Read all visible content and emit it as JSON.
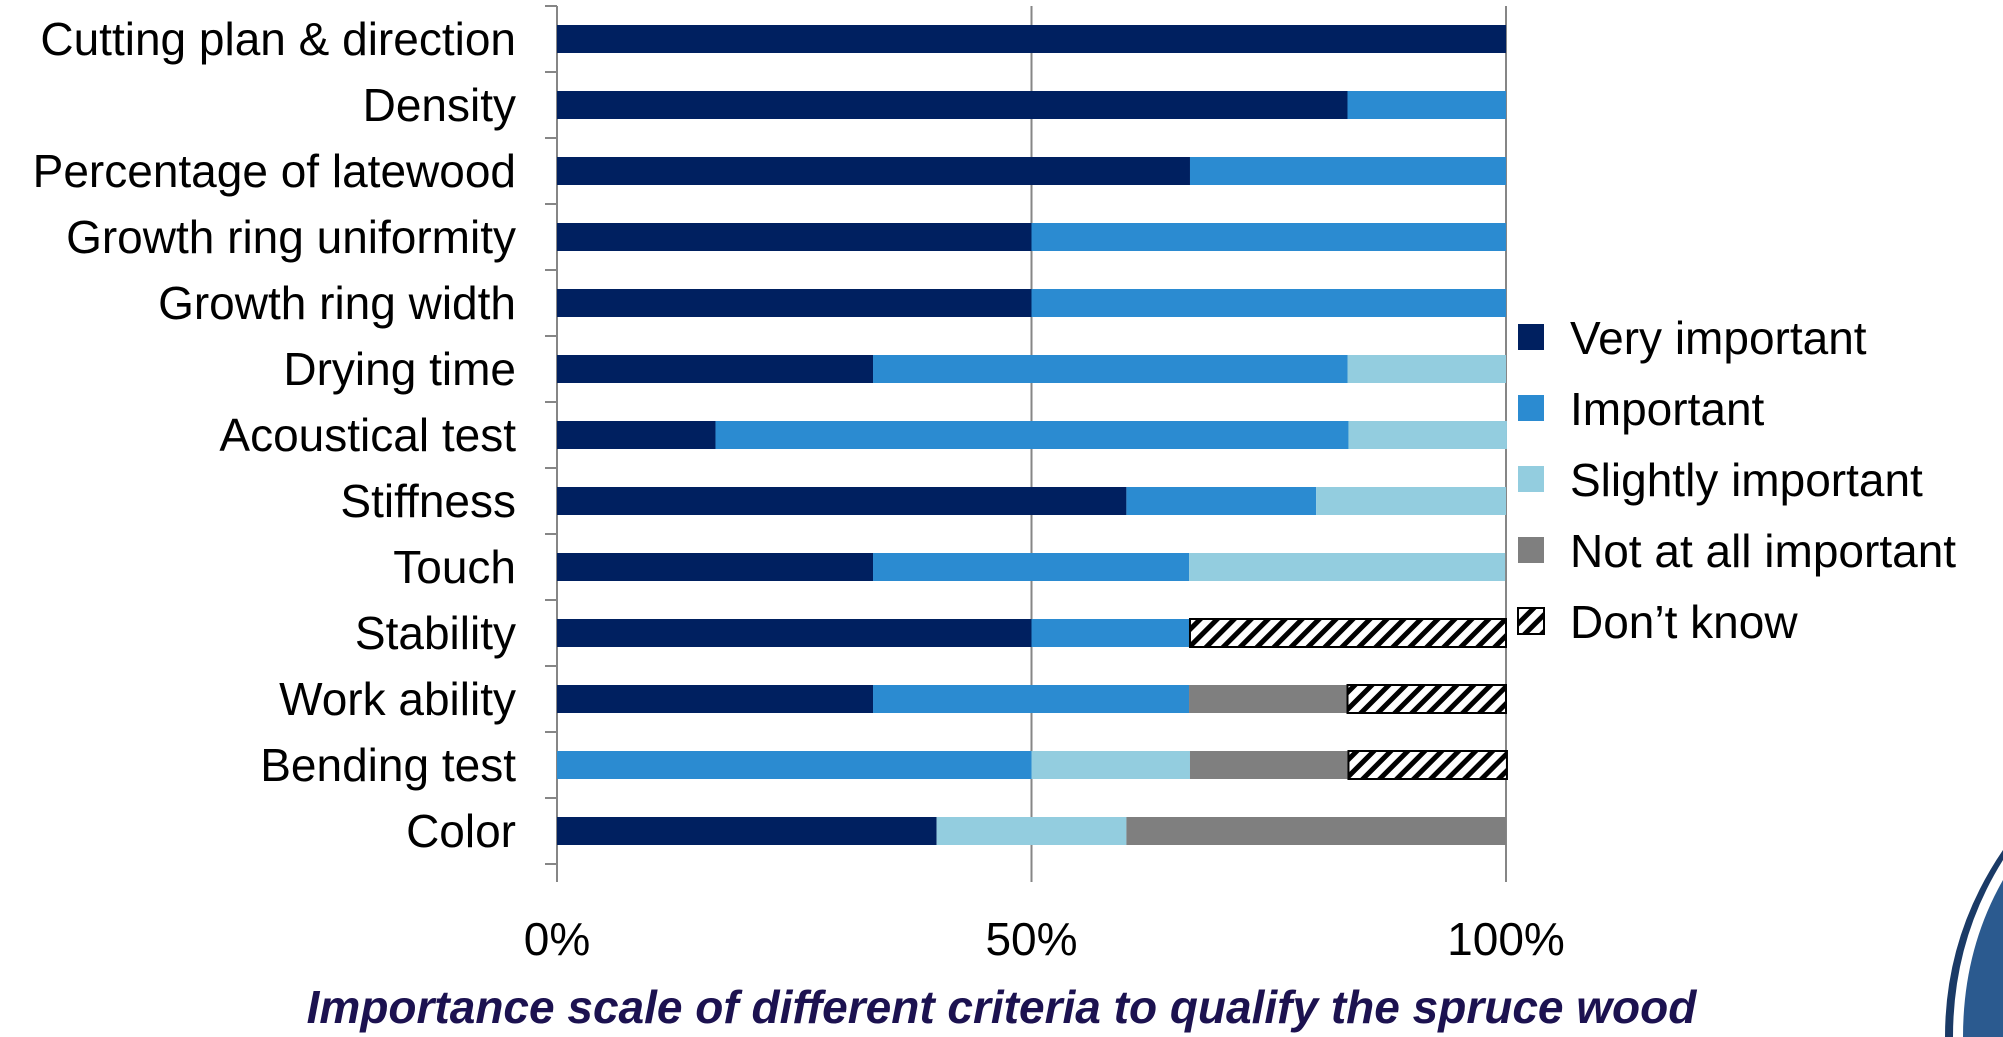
{
  "caption": "Importance scale of different criteria to qualify the spruce wood",
  "colors": {
    "very_important": "#002060",
    "important": "#2b8bd1",
    "slightly_important": "#93cddf",
    "not_at_all_important": "#7f7f7f",
    "dont_know": "pattern-diagonal-hatch",
    "gridline": "#868686",
    "corner_accent": "#2b5a8f"
  },
  "chart_data": {
    "type": "bar",
    "orientation": "horizontal",
    "stacked": "percent",
    "categories": [
      "Cutting plan & direction",
      "Density",
      "Percentage of latewood",
      "Growth ring uniformity",
      "Growth ring width",
      "Drying time",
      "Acoustical test",
      "Stiffness",
      "Touch",
      "Stability",
      "Work ability",
      "Bending test",
      "Color"
    ],
    "series": [
      {
        "name": "Very important",
        "values": [
          100,
          83.3,
          66.7,
          50,
          50,
          33.3,
          16.7,
          60,
          33.3,
          50,
          33.3,
          0,
          40
        ]
      },
      {
        "name": "Important",
        "values": [
          0,
          16.7,
          33.3,
          50,
          50,
          50,
          66.7,
          20,
          33.3,
          16.7,
          33.3,
          50,
          0
        ]
      },
      {
        "name": "Slightly important",
        "values": [
          0,
          0,
          0,
          0,
          0,
          16.7,
          16.7,
          20,
          33.3,
          0,
          0,
          16.7,
          20
        ]
      },
      {
        "name": "Not at all important",
        "values": [
          0,
          0,
          0,
          0,
          0,
          0,
          0,
          0,
          0,
          0,
          16.7,
          16.7,
          40
        ]
      },
      {
        "name": "Don’t know",
        "values": [
          0,
          0,
          0,
          0,
          0,
          0,
          0,
          0,
          0,
          33.3,
          16.7,
          16.7,
          0
        ]
      }
    ],
    "xlim": [
      0,
      100
    ],
    "xticks": [
      0,
      50,
      100
    ],
    "xtick_labels": [
      "0%",
      "50%",
      "100%"
    ],
    "grid": "vertical",
    "legend": "right",
    "title": "",
    "xlabel": "",
    "ylabel": ""
  }
}
